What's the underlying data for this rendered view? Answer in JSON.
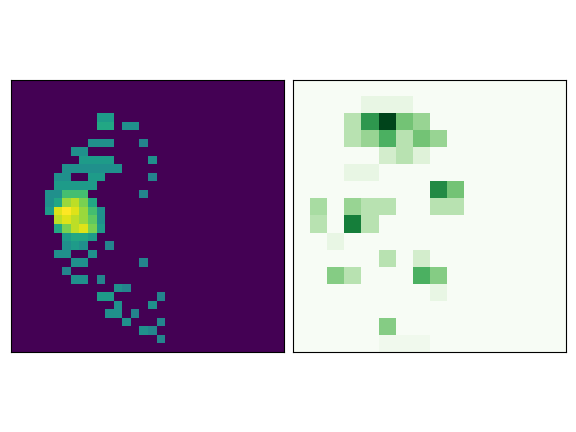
{
  "chart_data": [
    {
      "type": "heatmap",
      "color": "viridis",
      "tick_labels": false,
      "color_range": [
        0,
        1
      ],
      "cells": [
        [
          0,
          0,
          0,
          0,
          0,
          0,
          0,
          0,
          0,
          0,
          0,
          0,
          0,
          0,
          0,
          0,
          0,
          0,
          0,
          0,
          0,
          0,
          0,
          0,
          0,
          0,
          0,
          0,
          0,
          0,
          0,
          0
        ],
        [
          0,
          0,
          0,
          0,
          0,
          0,
          0,
          0,
          0,
          0,
          0,
          0,
          0,
          0,
          0,
          0,
          0,
          0,
          0,
          0,
          0,
          0,
          0,
          0,
          0,
          0,
          0,
          0,
          0,
          0,
          0,
          0
        ],
        [
          0,
          0,
          0,
          0,
          0,
          0,
          0,
          0,
          0,
          0,
          0,
          0,
          0,
          0,
          0,
          0,
          0,
          0,
          0,
          0,
          0,
          0,
          0,
          0,
          0,
          0,
          0,
          0,
          0,
          0,
          0,
          0
        ],
        [
          0,
          0,
          0,
          0,
          0,
          0,
          0,
          0,
          0,
          0,
          0,
          0,
          0,
          0,
          0,
          0,
          0,
          0,
          0,
          0,
          0,
          0,
          0,
          0,
          0,
          0,
          0,
          0,
          0,
          0,
          0,
          0
        ],
        [
          0,
          0,
          0,
          0,
          0,
          0,
          0,
          0,
          0,
          0,
          0.55,
          0.55,
          0,
          0,
          0,
          0,
          0,
          0,
          0,
          0,
          0,
          0,
          0,
          0,
          0,
          0,
          0,
          0,
          0,
          0,
          0,
          0
        ],
        [
          0,
          0,
          0,
          0,
          0,
          0,
          0,
          0,
          0,
          0,
          0.6,
          0.6,
          0,
          0.5,
          0.5,
          0,
          0,
          0,
          0,
          0,
          0,
          0,
          0,
          0,
          0,
          0,
          0,
          0,
          0,
          0,
          0,
          0
        ],
        [
          0,
          0,
          0,
          0,
          0,
          0,
          0,
          0,
          0,
          0,
          0,
          0,
          0,
          0,
          0,
          0,
          0,
          0,
          0,
          0,
          0,
          0,
          0,
          0,
          0,
          0,
          0,
          0,
          0,
          0,
          0,
          0
        ],
        [
          0,
          0,
          0,
          0,
          0,
          0,
          0,
          0,
          0,
          0.5,
          0.5,
          0.5,
          0,
          0,
          0,
          0.45,
          0,
          0,
          0,
          0,
          0,
          0,
          0,
          0,
          0,
          0,
          0,
          0,
          0,
          0,
          0,
          0
        ],
        [
          0,
          0,
          0,
          0,
          0,
          0,
          0,
          0.5,
          0.5,
          0,
          0,
          0,
          0,
          0,
          0,
          0,
          0,
          0,
          0,
          0,
          0,
          0,
          0,
          0,
          0,
          0,
          0,
          0,
          0,
          0,
          0,
          0
        ],
        [
          0,
          0,
          0,
          0,
          0,
          0,
          0,
          0,
          0.55,
          0.55,
          0.55,
          0.55,
          0,
          0,
          0,
          0,
          0.5,
          0,
          0,
          0,
          0,
          0,
          0,
          0,
          0,
          0,
          0,
          0,
          0,
          0,
          0,
          0
        ],
        [
          0,
          0,
          0,
          0,
          0,
          0,
          0.5,
          0.5,
          0.5,
          0.5,
          0.5,
          0.5,
          0.5,
          0,
          0,
          0,
          0,
          0,
          0,
          0,
          0,
          0,
          0,
          0,
          0,
          0,
          0,
          0,
          0,
          0,
          0,
          0
        ],
        [
          0,
          0,
          0,
          0,
          0,
          0.5,
          0.5,
          0,
          0,
          0.55,
          0.55,
          0,
          0,
          0,
          0,
          0,
          0.45,
          0,
          0,
          0,
          0,
          0,
          0,
          0,
          0,
          0,
          0,
          0,
          0,
          0,
          0,
          0
        ],
        [
          0,
          0,
          0,
          0,
          0,
          0.55,
          0.55,
          0.55,
          0.55,
          0.55,
          0,
          0,
          0,
          0,
          0,
          0,
          0,
          0,
          0,
          0,
          0,
          0,
          0,
          0,
          0,
          0,
          0,
          0,
          0,
          0,
          0,
          0
        ],
        [
          0,
          0,
          0,
          0,
          0.5,
          0.5,
          0.7,
          0.7,
          0.7,
          0,
          0,
          0,
          0,
          0,
          0,
          0.45,
          0,
          0,
          0,
          0,
          0,
          0,
          0,
          0,
          0,
          0,
          0,
          0,
          0,
          0,
          0,
          0
        ],
        [
          0,
          0,
          0,
          0,
          0.5,
          0.6,
          0.85,
          0.9,
          0.8,
          0.6,
          0,
          0,
          0,
          0,
          0,
          0,
          0,
          0,
          0,
          0,
          0,
          0,
          0,
          0,
          0,
          0,
          0,
          0,
          0,
          0,
          0,
          0
        ],
        [
          0,
          0,
          0,
          0,
          0.55,
          0.95,
          1.0,
          0.95,
          0.85,
          0.7,
          0.5,
          0,
          0,
          0,
          0,
          0,
          0,
          0,
          0,
          0,
          0,
          0,
          0,
          0,
          0,
          0,
          0,
          0,
          0,
          0,
          0,
          0
        ],
        [
          0,
          0,
          0,
          0,
          0,
          0.9,
          0.95,
          0.9,
          0.85,
          0.75,
          0.5,
          0,
          0,
          0,
          0,
          0,
          0,
          0,
          0,
          0,
          0,
          0,
          0,
          0,
          0,
          0,
          0,
          0,
          0,
          0,
          0,
          0
        ],
        [
          0,
          0,
          0,
          0,
          0,
          0.6,
          0.8,
          0.9,
          0.95,
          0.8,
          0.55,
          0,
          0,
          0,
          0,
          0,
          0,
          0,
          0,
          0,
          0,
          0,
          0,
          0,
          0,
          0,
          0,
          0,
          0,
          0,
          0,
          0
        ],
        [
          0,
          0,
          0,
          0,
          0,
          0,
          0.55,
          0.6,
          0.6,
          0.55,
          0,
          0,
          0,
          0,
          0,
          0,
          0,
          0,
          0,
          0,
          0,
          0,
          0,
          0,
          0,
          0,
          0,
          0,
          0,
          0,
          0,
          0
        ],
        [
          0,
          0,
          0,
          0,
          0,
          0,
          0.5,
          0.55,
          0.5,
          0,
          0,
          0.45,
          0,
          0,
          0,
          0,
          0,
          0,
          0,
          0,
          0,
          0,
          0,
          0,
          0,
          0,
          0,
          0,
          0,
          0,
          0,
          0
        ],
        [
          0,
          0,
          0,
          0,
          0,
          0.5,
          0.5,
          0,
          0,
          0.5,
          0,
          0,
          0,
          0,
          0,
          0,
          0,
          0,
          0,
          0,
          0,
          0,
          0,
          0,
          0,
          0,
          0,
          0,
          0,
          0,
          0,
          0
        ],
        [
          0,
          0,
          0,
          0,
          0,
          0,
          0,
          0.5,
          0.5,
          0,
          0,
          0,
          0,
          0,
          0,
          0.45,
          0,
          0,
          0,
          0,
          0,
          0,
          0,
          0,
          0,
          0,
          0,
          0,
          0,
          0,
          0,
          0
        ],
        [
          0,
          0,
          0,
          0,
          0,
          0,
          0.45,
          0,
          0,
          0,
          0,
          0,
          0,
          0,
          0,
          0,
          0,
          0,
          0,
          0,
          0,
          0,
          0,
          0,
          0,
          0,
          0,
          0,
          0,
          0,
          0,
          0
        ],
        [
          0,
          0,
          0,
          0,
          0,
          0,
          0,
          0.5,
          0.5,
          0,
          0.45,
          0,
          0,
          0,
          0,
          0,
          0,
          0,
          0,
          0,
          0,
          0,
          0,
          0,
          0,
          0,
          0,
          0,
          0,
          0,
          0,
          0
        ],
        [
          0,
          0,
          0,
          0,
          0,
          0,
          0,
          0,
          0,
          0,
          0,
          0,
          0.5,
          0.45,
          0,
          0,
          0,
          0,
          0,
          0,
          0,
          0,
          0,
          0,
          0,
          0,
          0,
          0,
          0,
          0,
          0,
          0
        ],
        [
          0,
          0,
          0,
          0,
          0,
          0,
          0,
          0,
          0,
          0,
          0.55,
          0.55,
          0,
          0,
          0,
          0,
          0,
          0.45,
          0,
          0,
          0,
          0,
          0,
          0,
          0,
          0,
          0,
          0,
          0,
          0,
          0,
          0
        ],
        [
          0,
          0,
          0,
          0,
          0,
          0,
          0,
          0,
          0,
          0,
          0,
          0,
          0.5,
          0,
          0,
          0,
          0.5,
          0,
          0,
          0,
          0,
          0,
          0,
          0,
          0,
          0,
          0,
          0,
          0,
          0,
          0,
          0
        ],
        [
          0,
          0,
          0,
          0,
          0,
          0,
          0,
          0,
          0,
          0,
          0,
          0.5,
          0.5,
          0,
          0.45,
          0,
          0,
          0,
          0,
          0,
          0,
          0,
          0,
          0,
          0,
          0,
          0,
          0,
          0,
          0,
          0,
          0
        ],
        [
          0,
          0,
          0,
          0,
          0,
          0,
          0,
          0,
          0,
          0,
          0,
          0,
          0,
          0.5,
          0,
          0,
          0,
          0.45,
          0,
          0,
          0,
          0,
          0,
          0,
          0,
          0,
          0,
          0,
          0,
          0,
          0,
          0
        ],
        [
          0,
          0,
          0,
          0,
          0,
          0,
          0,
          0,
          0,
          0,
          0,
          0,
          0,
          0,
          0,
          0.5,
          0.45,
          0,
          0,
          0,
          0,
          0,
          0,
          0,
          0,
          0,
          0,
          0,
          0,
          0,
          0,
          0
        ],
        [
          0,
          0,
          0,
          0,
          0,
          0,
          0,
          0,
          0,
          0,
          0,
          0,
          0,
          0,
          0,
          0,
          0,
          0.45,
          0,
          0,
          0,
          0,
          0,
          0,
          0,
          0,
          0,
          0,
          0,
          0,
          0,
          0
        ],
        [
          0,
          0,
          0,
          0,
          0,
          0,
          0,
          0,
          0,
          0,
          0,
          0,
          0,
          0,
          0,
          0,
          0,
          0,
          0,
          0,
          0,
          0,
          0,
          0,
          0,
          0,
          0,
          0,
          0,
          0,
          0,
          0
        ]
      ]
    },
    {
      "type": "heatmap",
      "color": "Greens",
      "tick_labels": false,
      "color_range": [
        0,
        1
      ],
      "cells": [
        [
          0,
          0,
          0,
          0,
          0,
          0,
          0,
          0,
          0,
          0,
          0,
          0,
          0,
          0,
          0,
          0
        ],
        [
          0,
          0,
          0,
          0,
          0.1,
          0.1,
          0.1,
          0,
          0,
          0,
          0,
          0,
          0,
          0,
          0,
          0
        ],
        [
          0,
          0,
          0,
          0.3,
          0.7,
          1.0,
          0.5,
          0.4,
          0,
          0,
          0,
          0,
          0,
          0,
          0,
          0
        ],
        [
          0,
          0,
          0,
          0.3,
          0.4,
          0.6,
          0.3,
          0.5,
          0.4,
          0,
          0,
          0,
          0,
          0,
          0,
          0
        ],
        [
          0,
          0,
          0,
          0,
          0,
          0.2,
          0.3,
          0.15,
          0,
          0,
          0,
          0,
          0,
          0,
          0,
          0
        ],
        [
          0,
          0,
          0,
          0.1,
          0.1,
          0,
          0,
          0,
          0,
          0,
          0,
          0,
          0,
          0,
          0,
          0
        ],
        [
          0,
          0,
          0,
          0,
          0,
          0,
          0,
          0,
          0.75,
          0.5,
          0,
          0,
          0,
          0,
          0,
          0
        ],
        [
          0,
          0.35,
          0,
          0.4,
          0.3,
          0.3,
          0,
          0,
          0.3,
          0.3,
          0,
          0,
          0,
          0,
          0,
          0
        ],
        [
          0,
          0.3,
          0,
          0.8,
          0.3,
          0,
          0,
          0,
          0,
          0,
          0,
          0,
          0,
          0,
          0,
          0
        ],
        [
          0,
          0,
          0.1,
          0,
          0,
          0,
          0,
          0,
          0,
          0,
          0,
          0,
          0,
          0,
          0,
          0
        ],
        [
          0,
          0,
          0,
          0,
          0,
          0.3,
          0,
          0.2,
          0,
          0,
          0,
          0,
          0,
          0,
          0,
          0
        ],
        [
          0,
          0,
          0.45,
          0.3,
          0,
          0,
          0,
          0.6,
          0.45,
          0,
          0,
          0,
          0,
          0,
          0,
          0
        ],
        [
          0,
          0,
          0,
          0,
          0,
          0,
          0,
          0,
          0.1,
          0,
          0,
          0,
          0,
          0,
          0,
          0
        ],
        [
          0,
          0,
          0,
          0,
          0,
          0,
          0,
          0,
          0,
          0,
          0,
          0,
          0,
          0,
          0,
          0
        ],
        [
          0,
          0,
          0,
          0,
          0,
          0.45,
          0,
          0,
          0,
          0,
          0,
          0,
          0,
          0,
          0,
          0
        ],
        [
          0,
          0,
          0,
          0,
          0,
          0.05,
          0.05,
          0.05,
          0,
          0,
          0,
          0,
          0,
          0,
          0,
          0
        ]
      ]
    }
  ]
}
